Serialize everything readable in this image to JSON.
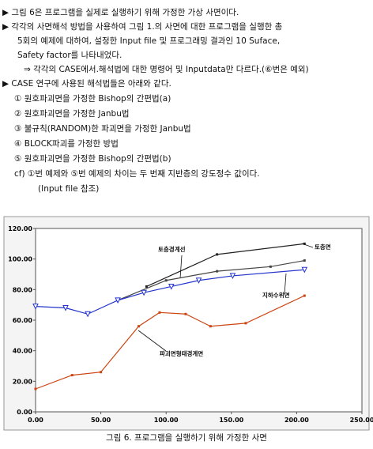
{
  "document": {
    "lines": [
      "▶ 그림 6은 프로그램을 실제로 실행하기 위해 가정한 가상 사면이다.",
      "▶ 각각의 사면해석 방법을 사용하여 그림 1.의 사면에 대한 프로그램을 실행한 총",
      "5회의 예제에 대하여, 설정한 Input file 및 프로그래밍 결과인 10 Suface,",
      "Safety factor를 나타내었다.",
      "⇒ 각각의 CASE에서.해석법에 대한 명령어 및 Inputdata만 다르다.(⑥번은 예외)",
      "▶ CASE 연구에 사용된 해석법들은 아래와 같다.",
      "① 원호파괴면을 가정한 Bishop의 간편법(a)",
      "② 원호파괴면을 가정한 Janbu법",
      "③ 불규칙(RANDOM)한 파괴면을 가정한 Janbu법",
      "④ BLOCK파괴를 가정한 방법",
      "⑤ 원호파괴면을 가정한 Bishop의 간편법(b)",
      "cf) ①번 예제와 ⑤번 예제의 차이는 두 번째 지반층의 강도정수 값이다.",
      "(Input file 참조)"
    ],
    "caption": "그림 6. 프로그램을 실행하기 위해 가정한 사면"
  },
  "chart_data": {
    "type": "line",
    "xlim": [
      0,
      250
    ],
    "ylim": [
      0,
      120
    ],
    "xticks": [
      {
        "value": 0,
        "label": "0.00"
      },
      {
        "value": 50,
        "label": "50.00"
      },
      {
        "value": 100,
        "label": "100.00"
      },
      {
        "value": 150,
        "label": "150.00"
      },
      {
        "value": 200,
        "label": "200.00"
      },
      {
        "value": 250,
        "label": "250.00"
      }
    ],
    "yticks": [
      {
        "value": 0,
        "label": "0.00"
      },
      {
        "value": 20,
        "label": "20.00"
      },
      {
        "value": 40,
        "label": "40.00"
      },
      {
        "value": 60,
        "label": "60.00"
      },
      {
        "value": 80,
        "label": "80.00"
      },
      {
        "value": 100,
        "label": "100.00"
      },
      {
        "value": 120,
        "label": "120.00"
      }
    ],
    "series": [
      {
        "name": "토층경계선",
        "color": "#222222",
        "x": [
          85,
          139,
          206
        ],
        "values": [
          82,
          103,
          110
        ]
      },
      {
        "name": "토층면",
        "color": "#444444",
        "x": [
          63,
          100,
          139,
          180,
          206
        ],
        "values": [
          73,
          86,
          92,
          95,
          99
        ]
      },
      {
        "name": "지하수위면",
        "color": "#2233cc",
        "x": [
          0,
          23,
          40,
          63,
          83,
          104,
          125,
          151,
          206
        ],
        "values": [
          69,
          68,
          64,
          73,
          78,
          82,
          86,
          89,
          93
        ]
      },
      {
        "name": "파괴면형태경계면",
        "color": "#cc4411",
        "x": [
          0,
          28,
          50,
          79,
          95,
          115,
          134,
          161,
          206
        ],
        "values": [
          15,
          24,
          26,
          56,
          65,
          64,
          56,
          58,
          76
        ]
      }
    ]
  }
}
